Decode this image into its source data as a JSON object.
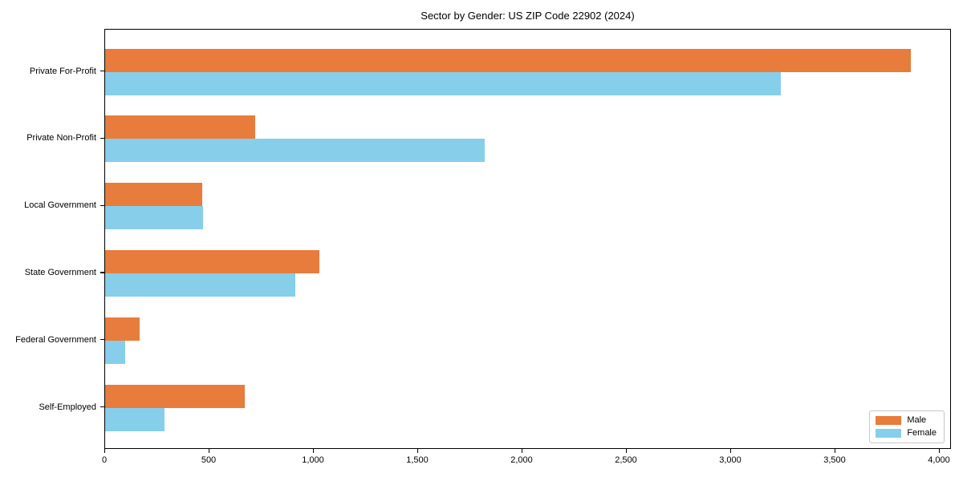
{
  "chart_data": {
    "type": "bar",
    "orientation": "horizontal",
    "title": "Sector by Gender: US ZIP Code 22902 (2024)",
    "xlabel": "",
    "ylabel": "",
    "categories": [
      "Private For-Profit",
      "Private Non-Profit",
      "Local Government",
      "State Government",
      "Federal Government",
      "Self-Employed"
    ],
    "series": [
      {
        "name": "Male",
        "color": "#E87C3C",
        "values": [
          3860,
          720,
          465,
          1025,
          165,
          670
        ]
      },
      {
        "name": "Female",
        "color": "#87CEEB",
        "values": [
          3240,
          1820,
          470,
          910,
          95,
          285
        ]
      }
    ],
    "xlim": [
      0,
      4058
    ],
    "xticks": [
      0,
      500,
      1000,
      1500,
      2000,
      2500,
      3000,
      3500,
      4000
    ],
    "xtick_labels": [
      "0",
      "500",
      "1,000",
      "1,500",
      "2,000",
      "2,500",
      "3,000",
      "3,500",
      "4,000"
    ],
    "grid": false,
    "legend_position": "lower right"
  },
  "legend": {
    "items": [
      {
        "label": "Male",
        "color": "#E87C3C"
      },
      {
        "label": "Female",
        "color": "#87CEEB"
      }
    ]
  }
}
